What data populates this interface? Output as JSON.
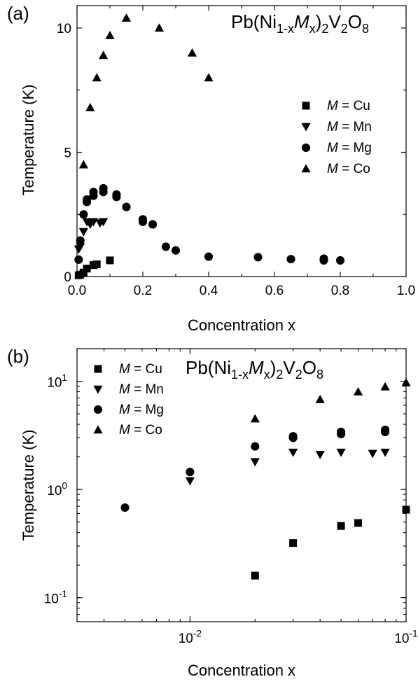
{
  "chart_data": [
    {
      "panel": "(a)",
      "type": "scatter",
      "title_parts": [
        "Pb(Ni",
        "1-x",
        "M",
        "x",
        ")",
        "2",
        "V",
        "2",
        "O",
        "8"
      ],
      "xlabel": "Concentration x",
      "ylabel": "Temperature (K)",
      "xlim": [
        0.0,
        1.0
      ],
      "ylim": [
        0,
        10.9
      ],
      "xscale": "linear",
      "yscale": "linear",
      "xticks": [
        0.0,
        0.2,
        0.4,
        0.6,
        0.8,
        1.0
      ],
      "xtick_labels": [
        "0.0",
        "0.2",
        "0.4",
        "0.6",
        "0.8",
        "1.0"
      ],
      "yticks": [
        0,
        5,
        10
      ],
      "ytick_labels": [
        "0",
        "5",
        "10"
      ],
      "legend_position": "right",
      "series": [
        {
          "name_prefix": "M",
          "name_rest": " = Cu",
          "marker": "square",
          "points": [
            [
              0.005,
              0.05
            ],
            [
              0.01,
              0.08
            ],
            [
              0.02,
              0.16
            ],
            [
              0.03,
              0.32
            ],
            [
              0.05,
              0.46
            ],
            [
              0.06,
              0.49
            ],
            [
              0.1,
              0.65
            ]
          ]
        },
        {
          "name_prefix": "M",
          "name_rest": " = Mn",
          "marker": "triangle-down",
          "points": [
            [
              0.005,
              1.1
            ],
            [
              0.01,
              1.2
            ],
            [
              0.02,
              1.8
            ],
            [
              0.03,
              2.2
            ],
            [
              0.04,
              2.1
            ],
            [
              0.05,
              2.2
            ],
            [
              0.07,
              2.15
            ],
            [
              0.08,
              2.2
            ]
          ]
        },
        {
          "name_prefix": "M",
          "name_rest": " = Mg",
          "marker": "circle",
          "points": [
            [
              0.005,
              0.68
            ],
            [
              0.01,
              1.45
            ],
            [
              0.02,
              2.5
            ],
            [
              0.03,
              3.0
            ],
            [
              0.03,
              3.1
            ],
            [
              0.05,
              3.25
            ],
            [
              0.05,
              3.4
            ],
            [
              0.08,
              3.4
            ],
            [
              0.08,
              3.55
            ],
            [
              0.12,
              3.2
            ],
            [
              0.12,
              3.3
            ],
            [
              0.15,
              2.8
            ],
            [
              0.2,
              2.3
            ],
            [
              0.2,
              2.2
            ],
            [
              0.23,
              2.1
            ],
            [
              0.27,
              1.2
            ],
            [
              0.3,
              1.05
            ],
            [
              0.4,
              0.8
            ],
            [
              0.55,
              0.78
            ],
            [
              0.65,
              0.7
            ],
            [
              0.75,
              0.65
            ],
            [
              0.75,
              0.72
            ],
            [
              0.8,
              0.65
            ]
          ]
        },
        {
          "name_prefix": "M",
          "name_rest": " = Co",
          "marker": "triangle-up",
          "points": [
            [
              0.02,
              4.5
            ],
            [
              0.04,
              6.8
            ],
            [
              0.06,
              8.0
            ],
            [
              0.08,
              8.9
            ],
            [
              0.1,
              9.7
            ],
            [
              0.15,
              10.4
            ],
            [
              0.25,
              10.0
            ],
            [
              0.35,
              9.0
            ],
            [
              0.4,
              8.0
            ]
          ]
        }
      ]
    },
    {
      "panel": "(b)",
      "type": "scatter",
      "title_parts": [
        "Pb(Ni",
        "1-x",
        "M",
        "x",
        ")",
        "2",
        "V",
        "2",
        "O",
        "8"
      ],
      "xlabel": "Concentration x",
      "ylabel": "Temperature (K)",
      "xlim": [
        0.003,
        0.1
      ],
      "ylim": [
        0.06,
        20
      ],
      "xscale": "log",
      "yscale": "log",
      "xtick_labels": [
        {
          "base": "10",
          "exp": "-2",
          "value": 0.01
        },
        {
          "base": "10",
          "exp": "-1",
          "value": 0.1
        }
      ],
      "ytick_labels": [
        {
          "base": "10",
          "exp": "-1",
          "value": 0.1
        },
        {
          "base": "10",
          "exp": "0",
          "value": 1
        },
        {
          "base": "10",
          "exp": "1",
          "value": 10
        }
      ],
      "legend_position": "top-left",
      "series": [
        {
          "name_prefix": "M",
          "name_rest": " = Cu",
          "marker": "square",
          "points": [
            [
              0.02,
              0.16
            ],
            [
              0.03,
              0.32
            ],
            [
              0.05,
              0.46
            ],
            [
              0.06,
              0.49
            ],
            [
              0.1,
              0.65
            ]
          ]
        },
        {
          "name_prefix": "M",
          "name_rest": " = Mn",
          "marker": "triangle-down",
          "points": [
            [
              0.01,
              1.2
            ],
            [
              0.02,
              1.8
            ],
            [
              0.03,
              2.2
            ],
            [
              0.04,
              2.1
            ],
            [
              0.05,
              2.2
            ],
            [
              0.07,
              2.15
            ],
            [
              0.08,
              2.2
            ]
          ]
        },
        {
          "name_prefix": "M",
          "name_rest": " = Mg",
          "marker": "circle",
          "points": [
            [
              0.005,
              0.68
            ],
            [
              0.01,
              1.45
            ],
            [
              0.02,
              2.5
            ],
            [
              0.03,
              3.0
            ],
            [
              0.03,
              3.1
            ],
            [
              0.05,
              3.25
            ],
            [
              0.05,
              3.4
            ],
            [
              0.08,
              3.4
            ],
            [
              0.08,
              3.55
            ]
          ]
        },
        {
          "name_prefix": "M",
          "name_rest": " = Co",
          "marker": "triangle-up",
          "points": [
            [
              0.02,
              4.5
            ],
            [
              0.04,
              6.8
            ],
            [
              0.06,
              8.0
            ],
            [
              0.08,
              8.9
            ],
            [
              0.1,
              9.7
            ]
          ]
        }
      ]
    }
  ]
}
